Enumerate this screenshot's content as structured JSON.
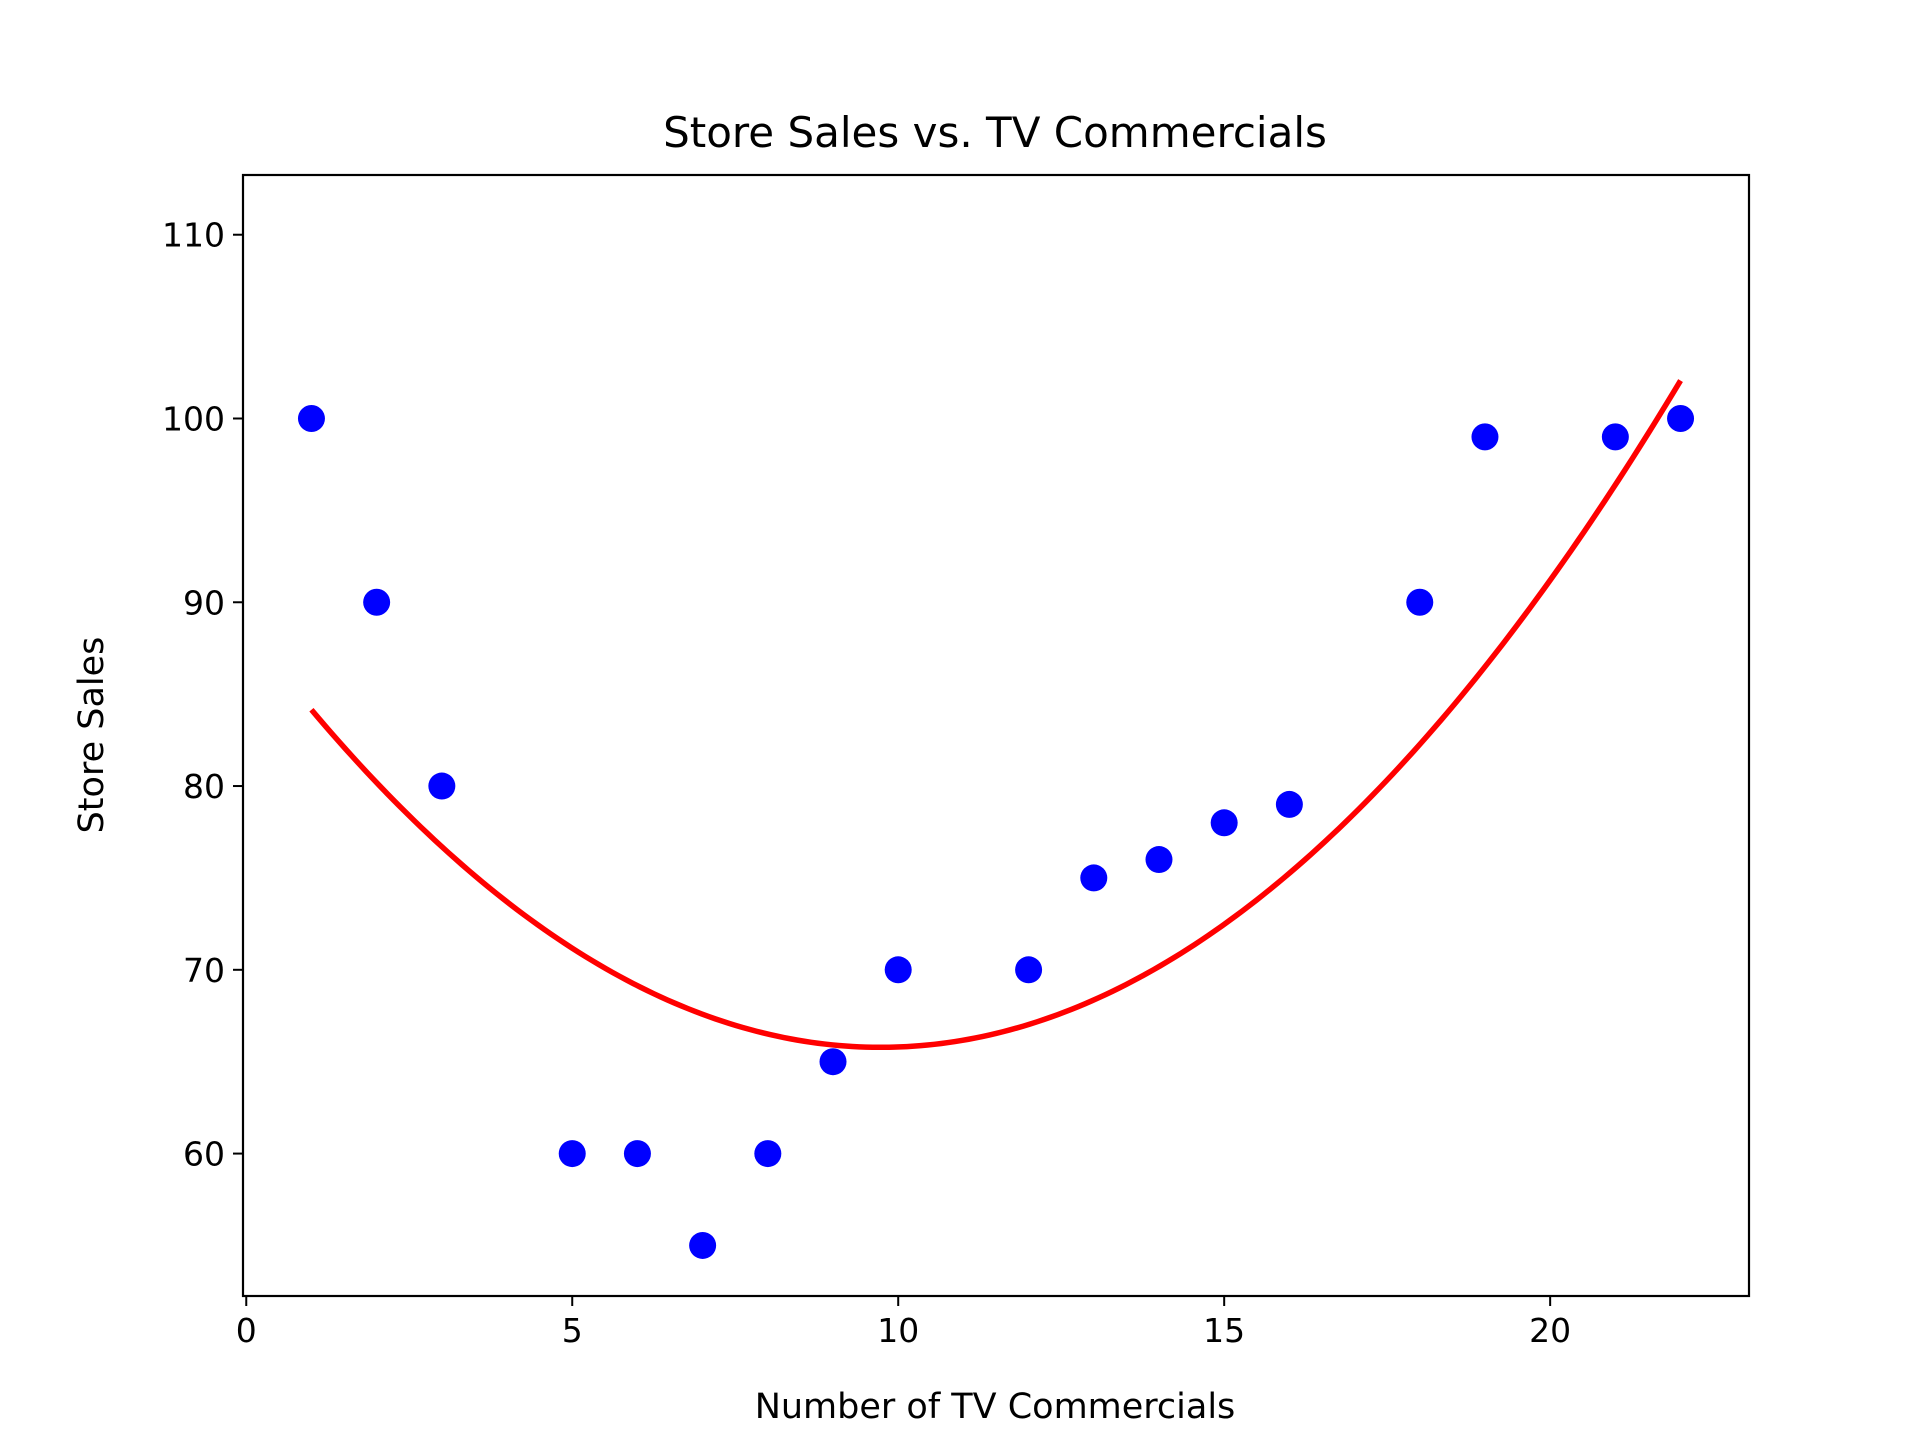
{
  "chart_data": {
    "type": "scatter",
    "title": "Store Sales vs. TV Commercials",
    "xlabel": "Number of TV Commercials",
    "ylabel": "Store Sales",
    "xlim": [
      -0.05,
      23.05
    ],
    "ylim": [
      52.25,
      113.25
    ],
    "xticks": [
      0,
      5,
      10,
      15,
      20
    ],
    "yticks": [
      60,
      70,
      80,
      90,
      100,
      110
    ],
    "grid": false,
    "points": {
      "color": "#0000ff",
      "x": [
        1,
        2,
        3,
        5,
        6,
        7,
        8,
        9,
        10,
        12,
        13,
        14,
        15,
        16,
        18,
        19,
        21,
        22
      ],
      "y": [
        100,
        90,
        80,
        60,
        60,
        55,
        60,
        65,
        70,
        70,
        75,
        76,
        78,
        79,
        90,
        99,
        99,
        100
      ]
    },
    "fit_curve": {
      "type": "quadratic",
      "color": "#ff0000",
      "x_range": [
        1,
        22
      ],
      "coefficients": [
        0.241,
        -4.69,
        88.6
      ]
    }
  }
}
